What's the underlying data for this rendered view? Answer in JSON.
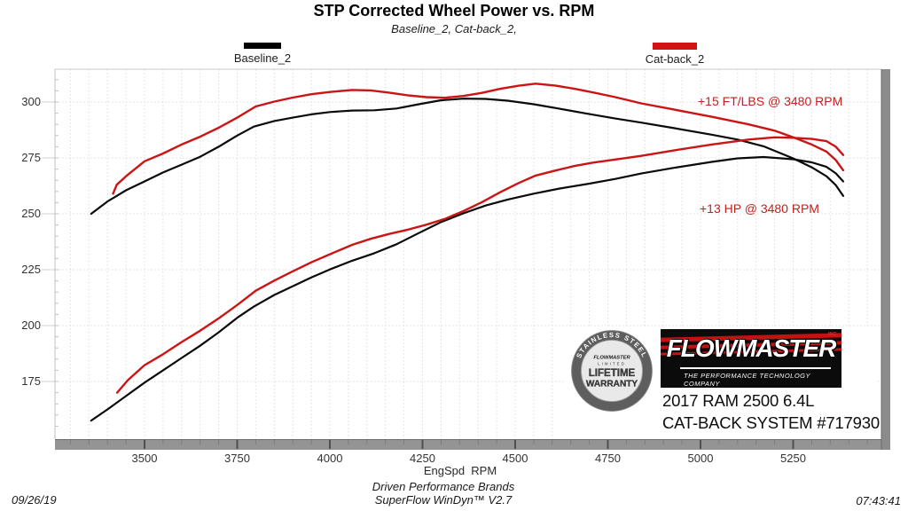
{
  "title": "STP Corrected Wheel Power vs. RPM",
  "subtitle": "Baseline_2, Cat-back_2,",
  "accent_color": "#cc1414",
  "legend": {
    "baseline": {
      "label": "Baseline_2",
      "color": "#000000"
    },
    "catback": {
      "label": "Cat-back_2",
      "color": "#d01414"
    }
  },
  "annotations": {
    "torque_gain": {
      "text": "+15 FT/LBS @ 3480 RPM"
    },
    "power_gain": {
      "text": "+13 HP @ 3480 RPM"
    }
  },
  "branding": {
    "badge": {
      "arc_text": "STAINLESS STEEL",
      "brand": "FLOWMASTER",
      "line1": "LIMITED",
      "line2": "LIFETIME",
      "line3": "WARRANTY"
    },
    "logo": {
      "brand": "FLOWMASTER",
      "inc": "INC.",
      "tagline": "THE PERFORMANCE TECHNOLOGY COMPANY"
    },
    "vehicle_line1": "2017 RAM 2500 6.4L",
    "vehicle_line2": "CAT-BACK SYSTEM #717930"
  },
  "footer": {
    "date": "09/26/19",
    "brand_line": "Driven Performance Brands",
    "software_line": "SuperFlow WinDyn™ V2.7",
    "time": "07:43:41"
  },
  "chart_data": {
    "type": "line",
    "title": "STP Corrected Wheel Power vs. RPM",
    "xlabel": "EngSpd  RPM",
    "ylabel": "",
    "x_ticks": [
      3500,
      3750,
      4000,
      4250,
      4500,
      4750,
      5000,
      5250
    ],
    "y_ticks": [
      175,
      200,
      225,
      250,
      275,
      300
    ],
    "xlim": [
      3258,
      5490
    ],
    "ylim": [
      149,
      315
    ],
    "grid": "dotted, minor vertical every 50 RPM, horizontal every 25",
    "legend_position": "top",
    "series": [
      {
        "name": "Baseline_2 Torque (ft-lbs)",
        "color": "#0a0a0a",
        "width": 2.2,
        "points": [
          [
            3356,
            250
          ],
          [
            3400,
            255.5
          ],
          [
            3450,
            260.5
          ],
          [
            3500,
            264.5
          ],
          [
            3550,
            268.5
          ],
          [
            3600,
            272
          ],
          [
            3650,
            275.5
          ],
          [
            3700,
            280
          ],
          [
            3750,
            285
          ],
          [
            3795,
            289
          ],
          [
            3850,
            291.5
          ],
          [
            3900,
            293
          ],
          [
            3950,
            294.5
          ],
          [
            4000,
            295.5
          ],
          [
            4060,
            296.2
          ],
          [
            4120,
            296.3
          ],
          [
            4180,
            297.1
          ],
          [
            4240,
            299
          ],
          [
            4300,
            300.8
          ],
          [
            4360,
            301.5
          ],
          [
            4420,
            301.4
          ],
          [
            4480,
            300.6
          ],
          [
            4550,
            299
          ],
          [
            4620,
            297
          ],
          [
            4700,
            294.6
          ],
          [
            4770,
            292.6
          ],
          [
            4840,
            290.8
          ],
          [
            4930,
            288.3
          ],
          [
            5030,
            285.4
          ],
          [
            5100,
            283.2
          ],
          [
            5170,
            280.2
          ],
          [
            5250,
            274.8
          ],
          [
            5300,
            270.8
          ],
          [
            5340,
            266.8
          ],
          [
            5365,
            262.8
          ],
          [
            5385,
            258
          ]
        ]
      },
      {
        "name": "Baseline_2 Power (HP)",
        "color": "#0a0a0a",
        "width": 2.2,
        "points": [
          [
            3356,
            157.5
          ],
          [
            3400,
            162.5
          ],
          [
            3450,
            168.5
          ],
          [
            3500,
            174.5
          ],
          [
            3550,
            180
          ],
          [
            3600,
            185.5
          ],
          [
            3650,
            191
          ],
          [
            3700,
            197
          ],
          [
            3750,
            203.5
          ],
          [
            3795,
            208.5
          ],
          [
            3850,
            213.7
          ],
          [
            3900,
            217.6
          ],
          [
            3950,
            221.5
          ],
          [
            4000,
            225.1
          ],
          [
            4060,
            229
          ],
          [
            4120,
            232.4
          ],
          [
            4180,
            236.4
          ],
          [
            4240,
            241.4
          ],
          [
            4300,
            246.3
          ],
          [
            4360,
            250.2
          ],
          [
            4420,
            253.7
          ],
          [
            4480,
            256.4
          ],
          [
            4550,
            259
          ],
          [
            4620,
            261.3
          ],
          [
            4700,
            263.5
          ],
          [
            4770,
            265.6
          ],
          [
            4840,
            268
          ],
          [
            4930,
            270.6
          ],
          [
            5030,
            273.2
          ],
          [
            5100,
            274.8
          ],
          [
            5170,
            275.4
          ],
          [
            5250,
            274.4
          ],
          [
            5300,
            273
          ],
          [
            5340,
            271
          ],
          [
            5365,
            268.1
          ],
          [
            5385,
            264.5
          ]
        ]
      },
      {
        "name": "Cat-back_2 Torque (ft-lbs)",
        "color": "#cc1414",
        "width": 2.4,
        "points": [
          [
            3415,
            259
          ],
          [
            3425,
            263
          ],
          [
            3455,
            267.5
          ],
          [
            3500,
            273.5
          ],
          [
            3550,
            277
          ],
          [
            3600,
            281
          ],
          [
            3650,
            284.5
          ],
          [
            3700,
            288.5
          ],
          [
            3750,
            293
          ],
          [
            3800,
            298
          ],
          [
            3850,
            300.2
          ],
          [
            3900,
            302
          ],
          [
            3950,
            303.5
          ],
          [
            4000,
            304.5
          ],
          [
            4060,
            305.4
          ],
          [
            4110,
            305.2
          ],
          [
            4160,
            304.2
          ],
          [
            4210,
            303
          ],
          [
            4260,
            302.2
          ],
          [
            4310,
            301.9
          ],
          [
            4360,
            302.7
          ],
          [
            4410,
            304.1
          ],
          [
            4460,
            305.9
          ],
          [
            4510,
            307.3
          ],
          [
            4555,
            308.2
          ],
          [
            4610,
            307.3
          ],
          [
            4660,
            305.9
          ],
          [
            4710,
            304.3
          ],
          [
            4770,
            302.2
          ],
          [
            4840,
            299.4
          ],
          [
            4930,
            296.6
          ],
          [
            5030,
            293.4
          ],
          [
            5130,
            290
          ],
          [
            5200,
            287.2
          ],
          [
            5250,
            284.2
          ],
          [
            5300,
            281
          ],
          [
            5340,
            277.8
          ],
          [
            5365,
            274
          ],
          [
            5385,
            269.5
          ]
        ]
      },
      {
        "name": "Cat-back_2 Power (HP)",
        "color": "#cc1414",
        "width": 2.4,
        "points": [
          [
            3426,
            170
          ],
          [
            3455,
            175.6
          ],
          [
            3500,
            182.3
          ],
          [
            3550,
            187.2
          ],
          [
            3600,
            192.6
          ],
          [
            3650,
            197.7
          ],
          [
            3700,
            203.2
          ],
          [
            3750,
            209.2
          ],
          [
            3800,
            215.6
          ],
          [
            3850,
            220.1
          ],
          [
            3900,
            224.3
          ],
          [
            3950,
            228.3
          ],
          [
            4000,
            231.9
          ],
          [
            4060,
            236.1
          ],
          [
            4110,
            238.8
          ],
          [
            4160,
            241
          ],
          [
            4210,
            242.9
          ],
          [
            4260,
            245.1
          ],
          [
            4310,
            247.7
          ],
          [
            4360,
            251.2
          ],
          [
            4410,
            255.2
          ],
          [
            4460,
            259.7
          ],
          [
            4510,
            263.8
          ],
          [
            4555,
            267.1
          ],
          [
            4610,
            269.4
          ],
          [
            4660,
            271.4
          ],
          [
            4710,
            272.9
          ],
          [
            4770,
            274.3
          ],
          [
            4840,
            275.9
          ],
          [
            4930,
            278.4
          ],
          [
            5030,
            281
          ],
          [
            5130,
            283.2
          ],
          [
            5200,
            284.2
          ],
          [
            5250,
            284
          ],
          [
            5300,
            283.5
          ],
          [
            5340,
            282.5
          ],
          [
            5365,
            280
          ],
          [
            5385,
            276.3
          ]
        ]
      }
    ]
  }
}
